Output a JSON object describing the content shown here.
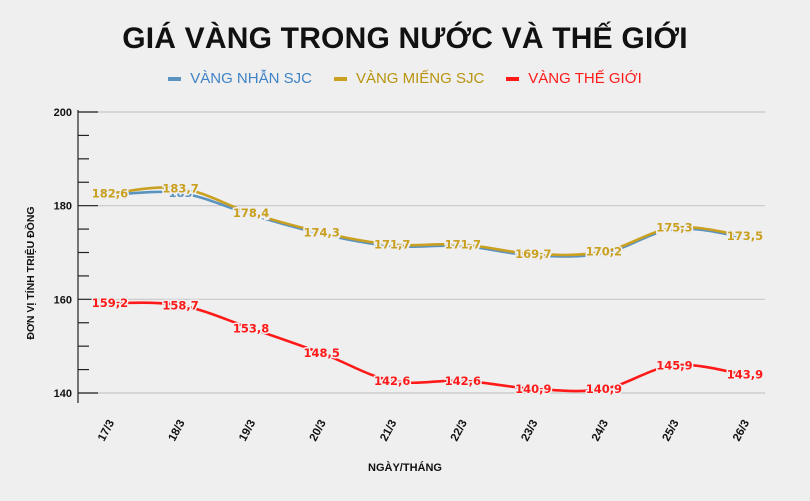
{
  "title": "GIÁ VÀNG TRONG NƯỚC VÀ THẾ GIỚI",
  "legend": [
    {
      "label": "VÀNG NHẪN SJC",
      "color": "#5b93c0"
    },
    {
      "label": "VÀNG MIẾNG SJC",
      "color": "#c9a020"
    },
    {
      "label": "VÀNG THẾ GIỚI",
      "color": "#ff1a1a"
    }
  ],
  "axes": {
    "ylabel": "ĐƠN VỊ TÍNH TRIỆU ĐỒNG",
    "xlabel": "NGÀY/THÁNG"
  },
  "chart_data": {
    "type": "line",
    "title": "GIÁ VÀNG TRONG NƯỚC VÀ THẾ GIỚI",
    "xlabel": "NGÀY/THÁNG",
    "ylabel": "ĐƠN VỊ TÍNH TRIỆU ĐỒNG",
    "categories": [
      "17/3",
      "18/3",
      "19/3",
      "20/3",
      "21/3",
      "22/3",
      "23/3",
      "24/3",
      "25/3",
      "26/3"
    ],
    "ylim": [
      140,
      200
    ],
    "yticks": [
      140,
      160,
      180,
      200
    ],
    "grid": true,
    "legend_position": "top",
    "series": [
      {
        "name": "VÀNG NHẪN SJC",
        "color": "#5b93c0",
        "values": [
          182.6,
          183.0,
          178.4,
          174.3,
          171.7,
          171.7,
          169.7,
          170.2,
          175.3,
          173.5
        ],
        "labels": [
          "182,6",
          "183",
          "178,4",
          "174,3",
          "171,7",
          "171,7",
          "169,7",
          "170,2",
          "175,3",
          "173,5"
        ]
      },
      {
        "name": "VÀNG MIẾNG SJC",
        "color": "#c9a020",
        "values": [
          182.6,
          183.7,
          178.4,
          174.3,
          171.7,
          171.7,
          169.7,
          170.2,
          175.3,
          173.5
        ],
        "labels": [
          "182,6",
          "183,7",
          "178,4",
          "174,3",
          "171,7",
          "171,7",
          "169,7",
          "170,2",
          "175,3",
          "173,5"
        ]
      },
      {
        "name": "VÀNG THẾ GIỚI",
        "color": "#ff1a1a",
        "values": [
          159.2,
          158.7,
          153.8,
          148.5,
          142.6,
          142.6,
          140.9,
          140.9,
          145.9,
          143.9
        ],
        "labels": [
          "159,2",
          "158,7",
          "153,8",
          "148,5",
          "142,6",
          "142,6",
          "140,9",
          "140,9",
          "145,9",
          "143,9"
        ]
      }
    ]
  }
}
